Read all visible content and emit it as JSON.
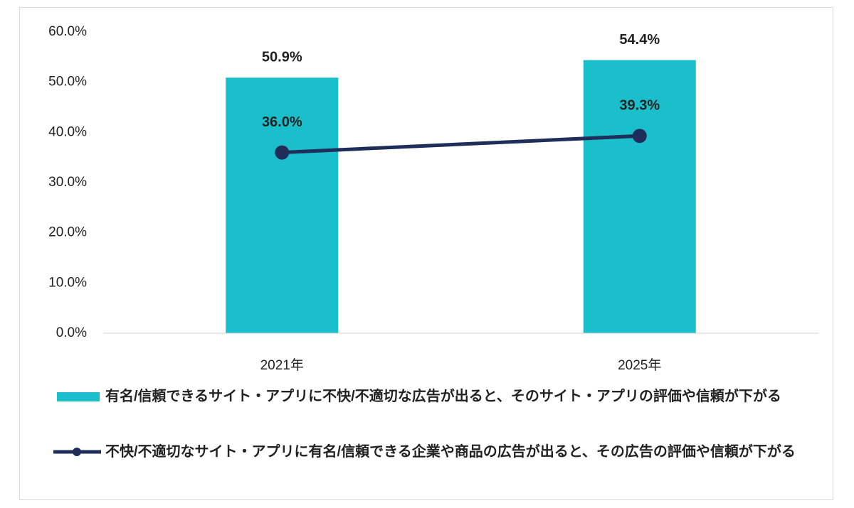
{
  "chart_data": {
    "type": "bar",
    "categories": [
      "2021年",
      "2025年"
    ],
    "series": [
      {
        "name": "有名/信頼できるサイト・アプリに不快/不適切な広告が出ると、そのサイト・アプリの評価や信頼が下がる",
        "type": "bar",
        "color": "#1bbfcc",
        "values": [
          50.9,
          54.4
        ],
        "value_labels": [
          "50.9%",
          "54.4%"
        ]
      },
      {
        "name": "不快/不適切なサイト・アプリに有名/信頼できる企業や商品の広告が出ると、その広告の評価や信頼が下がる",
        "type": "line",
        "color": "#1f2d5a",
        "values": [
          36.0,
          39.3
        ],
        "value_labels": [
          "36.0%",
          "39.3%"
        ]
      }
    ],
    "ylim": [
      0,
      60
    ],
    "yticks": [
      {
        "value": 0,
        "label": "0.0%"
      },
      {
        "value": 10,
        "label": "10.0%"
      },
      {
        "value": 20,
        "label": "20.0%"
      },
      {
        "value": 30,
        "label": "30.0%"
      },
      {
        "value": 40,
        "label": "40.0%"
      },
      {
        "value": 50,
        "label": "50.0%"
      },
      {
        "value": 60,
        "label": "60.0%"
      }
    ],
    "grid": false
  }
}
